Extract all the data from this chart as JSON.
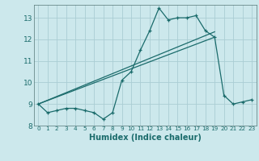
{
  "title": "",
  "xlabel": "Humidex (Indice chaleur)",
  "bg_color": "#cce8ec",
  "grid_color": "#aacdd4",
  "line_color": "#1a6b6b",
  "xlim": [
    -0.5,
    23.5
  ],
  "ylim": [
    8.0,
    13.6
  ],
  "yticks": [
    8,
    9,
    10,
    11,
    12,
    13
  ],
  "xticks": [
    0,
    1,
    2,
    3,
    4,
    5,
    6,
    7,
    8,
    9,
    10,
    11,
    12,
    13,
    14,
    15,
    16,
    17,
    18,
    19,
    20,
    21,
    22,
    23
  ],
  "main_x": [
    0,
    1,
    2,
    3,
    4,
    5,
    6,
    7,
    8,
    9,
    10,
    11,
    12,
    13,
    14,
    15,
    16,
    17,
    18,
    19,
    20,
    21,
    22,
    23
  ],
  "main_y": [
    9.0,
    8.6,
    8.7,
    8.8,
    8.8,
    8.7,
    8.6,
    8.3,
    8.6,
    10.1,
    10.5,
    11.5,
    12.4,
    13.45,
    12.9,
    13.0,
    13.0,
    13.1,
    12.4,
    12.1,
    9.4,
    9.0,
    9.1,
    9.2
  ],
  "trend1_x": [
    0,
    19
  ],
  "trend1_y": [
    9.0,
    12.35
  ],
  "trend2_x": [
    0,
    19
  ],
  "trend2_y": [
    9.0,
    12.1
  ]
}
